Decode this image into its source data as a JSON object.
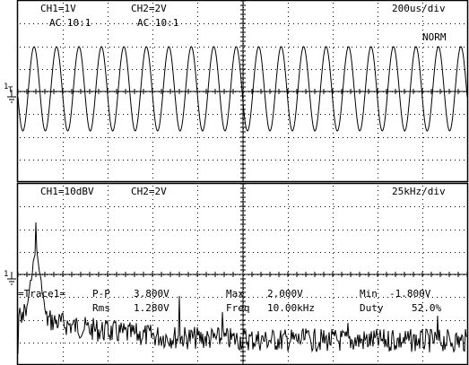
{
  "top_panel": {
    "ch1_scale": "CH1=1V",
    "ch1_coupling": "AC 10:1",
    "ch2_scale": "CH2=2V",
    "ch2_coupling": "AC 10:1",
    "timebase": "200us/div",
    "trigger_mode": "NORM",
    "marker_1": "1",
    "marker_t": "T"
  },
  "bottom_panel": {
    "ch1_scale": "CH1=10dBV",
    "ch2_scale": "CH2=2V",
    "span": "25kHz/div",
    "marker_1": "1"
  },
  "measurements": {
    "trace_label": "=Trace1=",
    "pp_label": "P-P",
    "pp_value": "3.800V",
    "max_label": "Max",
    "max_value": "2.000V",
    "min_label": "Min",
    "min_value": "-1.800V",
    "rms_label": "Rms",
    "rms_value": "1.280V",
    "freq_label": "Freq",
    "freq_value": "10.00kHz",
    "duty_label": "Duty",
    "duty_value": "52.0%"
  },
  "colors": {
    "background": "#ffffff",
    "foreground": "#000000"
  }
}
